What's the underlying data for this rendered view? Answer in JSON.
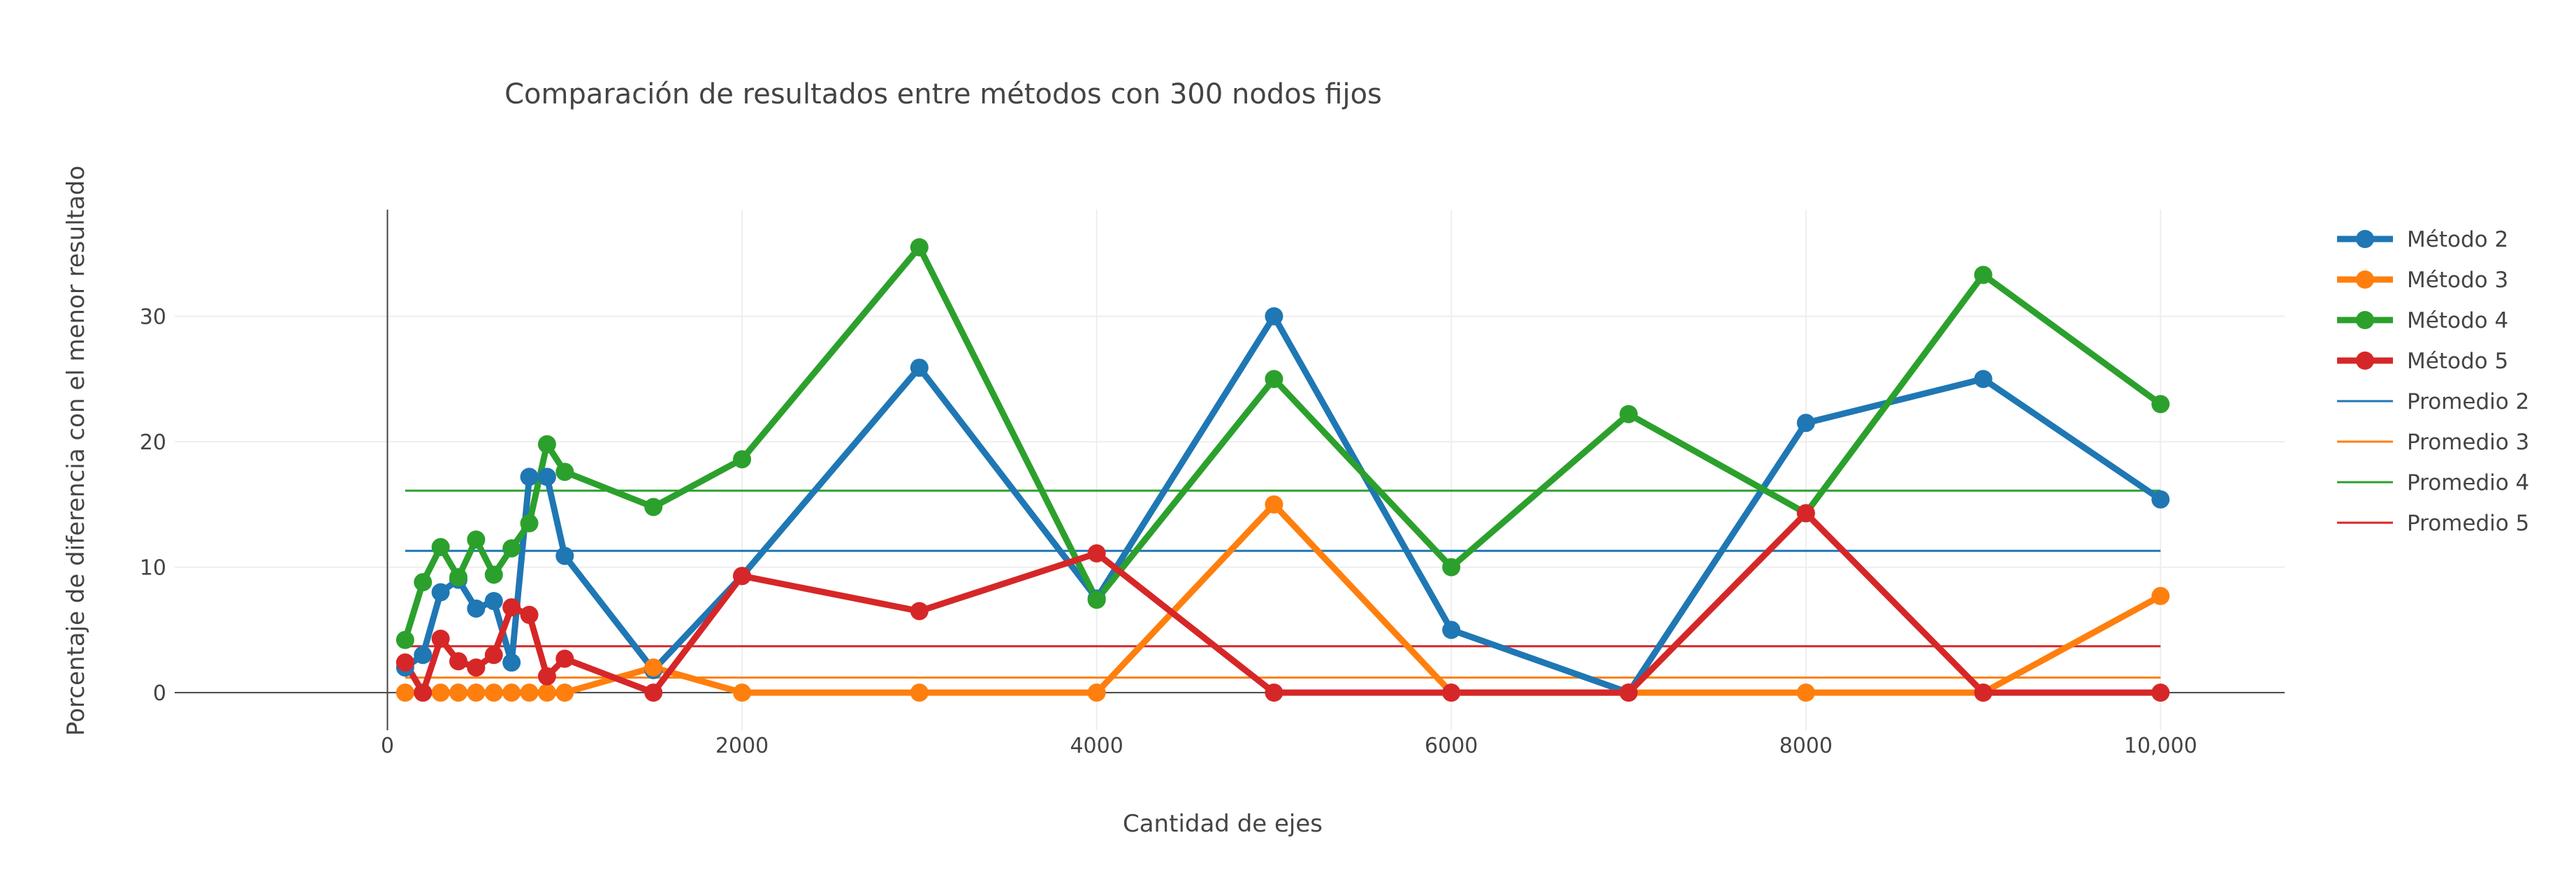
{
  "chart_data": {
    "type": "line",
    "title": "Comparación de resultados entre métodos con 300 nodos fijos",
    "xlabel": "Cantidad de ejes",
    "ylabel": "Porcentaje de diferencia con el menor resultado",
    "xlim": [
      -1200,
      10700
    ],
    "ylim": [
      -3,
      38.5
    ],
    "xticks": [
      0,
      2000,
      4000,
      6000,
      8000,
      10000
    ],
    "xtick_labels": [
      "0",
      "2000",
      "4000",
      "6000",
      "8000",
      "10,000"
    ],
    "yticks": [
      0,
      10,
      20,
      30
    ],
    "ytick_labels": [
      "0",
      "10",
      "20",
      "30"
    ],
    "grid": true,
    "legend_position": "right",
    "x": [
      100,
      200,
      300,
      400,
      500,
      600,
      700,
      800,
      900,
      1000,
      1500,
      2000,
      3000,
      4000,
      5000,
      6000,
      7000,
      8000,
      9000,
      10000
    ],
    "series": [
      {
        "name": "Método 2",
        "color": "#1f77b4",
        "style": "markers",
        "values": [
          2,
          3,
          8,
          9,
          6.7,
          7.3,
          2.4,
          17.2,
          17.2,
          10.9,
          1.8,
          9.3,
          25.9,
          7.5,
          30,
          5,
          0,
          21.5,
          25,
          15.4
        ]
      },
      {
        "name": "Método 3",
        "color": "#ff7f0e",
        "style": "markers",
        "values": [
          0,
          0,
          0,
          0,
          0,
          0,
          0,
          0,
          0,
          0,
          2,
          0,
          0,
          0,
          15,
          0,
          0,
          0,
          0,
          7.7
        ]
      },
      {
        "name": "Método 4",
        "color": "#2ca02c",
        "style": "markers",
        "values": [
          4.2,
          8.8,
          11.6,
          9.2,
          12.2,
          9.4,
          11.5,
          13.5,
          19.8,
          17.6,
          14.8,
          18.6,
          35.5,
          7.4,
          25,
          10,
          22.2,
          14.3,
          33.3,
          23
        ]
      },
      {
        "name": "Método 5",
        "color": "#d62728",
        "style": "markers",
        "values": [
          2.4,
          0,
          4.3,
          2.5,
          2,
          3,
          6.8,
          6.2,
          1.3,
          2.7,
          0,
          9.3,
          6.5,
          11.1,
          0,
          0,
          0,
          14.3,
          0,
          0
        ]
      },
      {
        "name": "Promedio 2",
        "color": "#1f77b4",
        "style": "line",
        "x_range": [
          100,
          10000
        ],
        "value": 11.3
      },
      {
        "name": "Promedio 3",
        "color": "#ff7f0e",
        "style": "line",
        "x_range": [
          100,
          10000
        ],
        "value": 1.2
      },
      {
        "name": "Promedio 4",
        "color": "#2ca02c",
        "style": "line",
        "x_range": [
          100,
          10000
        ],
        "value": 16.1
      },
      {
        "name": "Promedio 5",
        "color": "#d62728",
        "style": "line",
        "x_range": [
          100,
          10000
        ],
        "value": 3.7
      }
    ]
  }
}
